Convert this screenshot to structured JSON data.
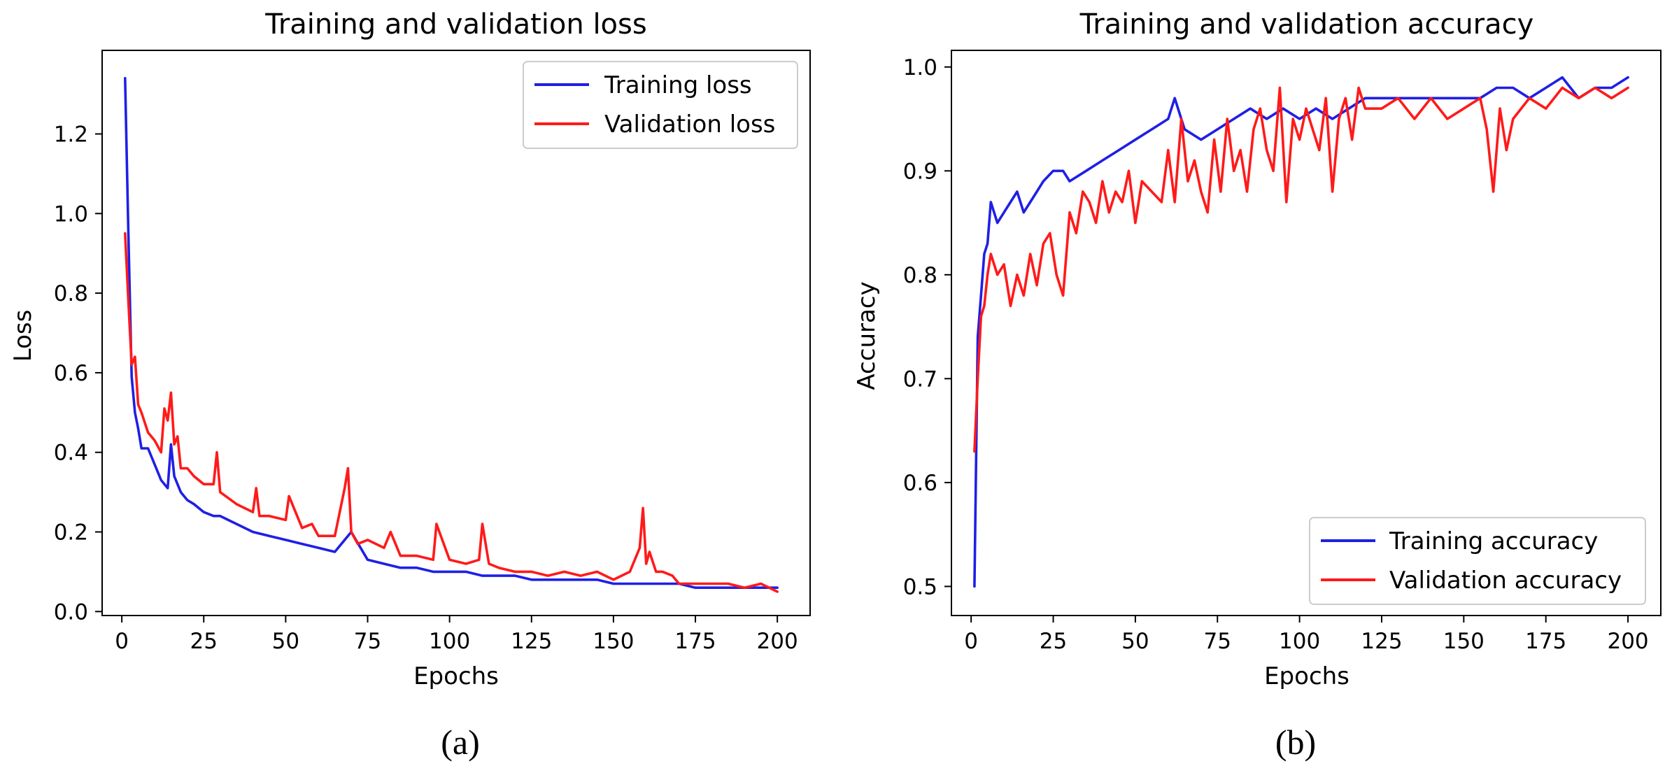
{
  "chart_data": [
    {
      "type": "line",
      "caption": "(a)",
      "title": "Training and validation loss",
      "xlabel": "Epochs",
      "ylabel": "Loss",
      "xlim": [
        -6,
        210
      ],
      "ylim": [
        -0.01,
        1.41
      ],
      "xticks": [
        0,
        25,
        50,
        75,
        100,
        125,
        150,
        175,
        200
      ],
      "xtick_labels": [
        "0",
        "25",
        "50",
        "75",
        "100",
        "125",
        "150",
        "175",
        "200"
      ],
      "yticks": [
        0.0,
        0.2,
        0.4,
        0.6,
        0.8,
        1.0,
        1.2
      ],
      "ytick_labels": [
        "0.0",
        "0.2",
        "0.4",
        "0.6",
        "0.8",
        "1.0",
        "1.2"
      ],
      "legend_position": "top-right",
      "grid": false,
      "series": [
        {
          "name": "Training loss",
          "color": "#1f1fe6",
          "x": [
            1,
            2,
            3,
            4,
            5,
            6,
            8,
            10,
            12,
            14,
            15,
            16,
            18,
            20,
            22,
            25,
            28,
            30,
            35,
            40,
            45,
            50,
            55,
            60,
            65,
            70,
            75,
            80,
            85,
            90,
            95,
            100,
            105,
            110,
            115,
            120,
            125,
            130,
            135,
            140,
            145,
            150,
            155,
            160,
            165,
            170,
            175,
            180,
            185,
            190,
            195,
            200
          ],
          "y": [
            1.34,
            0.95,
            0.59,
            0.5,
            0.46,
            0.41,
            0.41,
            0.37,
            0.33,
            0.31,
            0.42,
            0.34,
            0.3,
            0.28,
            0.27,
            0.25,
            0.24,
            0.24,
            0.22,
            0.2,
            0.19,
            0.18,
            0.17,
            0.16,
            0.15,
            0.2,
            0.13,
            0.12,
            0.11,
            0.11,
            0.1,
            0.1,
            0.1,
            0.09,
            0.09,
            0.09,
            0.08,
            0.08,
            0.08,
            0.08,
            0.08,
            0.07,
            0.07,
            0.07,
            0.07,
            0.07,
            0.06,
            0.06,
            0.06,
            0.06,
            0.06,
            0.06
          ]
        },
        {
          "name": "Validation loss",
          "color": "#ff1a1a",
          "x": [
            1,
            2,
            3,
            4,
            5,
            6,
            8,
            10,
            12,
            13,
            14,
            15,
            16,
            17,
            18,
            20,
            22,
            25,
            28,
            29,
            30,
            35,
            40,
            41,
            42,
            45,
            50,
            51,
            55,
            58,
            60,
            65,
            68,
            69,
            70,
            72,
            75,
            80,
            82,
            85,
            90,
            95,
            96,
            100,
            105,
            109,
            110,
            112,
            115,
            120,
            125,
            130,
            135,
            140,
            145,
            150,
            155,
            158,
            159,
            160,
            161,
            163,
            165,
            168,
            170,
            175,
            180,
            185,
            190,
            195,
            200
          ],
          "y": [
            0.95,
            0.78,
            0.62,
            0.64,
            0.52,
            0.5,
            0.45,
            0.43,
            0.4,
            0.51,
            0.48,
            0.55,
            0.42,
            0.44,
            0.36,
            0.36,
            0.34,
            0.32,
            0.32,
            0.4,
            0.3,
            0.27,
            0.25,
            0.31,
            0.24,
            0.24,
            0.23,
            0.29,
            0.21,
            0.22,
            0.19,
            0.19,
            0.31,
            0.36,
            0.2,
            0.17,
            0.18,
            0.16,
            0.2,
            0.14,
            0.14,
            0.13,
            0.22,
            0.13,
            0.12,
            0.13,
            0.22,
            0.12,
            0.11,
            0.1,
            0.1,
            0.09,
            0.1,
            0.09,
            0.1,
            0.08,
            0.1,
            0.16,
            0.26,
            0.12,
            0.15,
            0.1,
            0.1,
            0.09,
            0.07,
            0.07,
            0.07,
            0.07,
            0.06,
            0.07,
            0.05
          ]
        }
      ]
    },
    {
      "type": "line",
      "caption": "(b)",
      "title": "Training and validation accuracy",
      "xlabel": "Epochs",
      "ylabel": "Accuracy",
      "xlim": [
        -6,
        210
      ],
      "ylim": [
        0.472,
        1.016
      ],
      "xticks": [
        0,
        25,
        50,
        75,
        100,
        125,
        150,
        175,
        200
      ],
      "xtick_labels": [
        "0",
        "25",
        "50",
        "75",
        "100",
        "125",
        "150",
        "175",
        "200"
      ],
      "yticks": [
        0.5,
        0.6,
        0.7,
        0.8,
        0.9,
        1.0
      ],
      "ytick_labels": [
        "0.5",
        "0.6",
        "0.7",
        "0.8",
        "0.9",
        "1.0"
      ],
      "legend_position": "bottom-right",
      "grid": false,
      "series": [
        {
          "name": "Training accuracy",
          "color": "#1f1fe6",
          "x": [
            1,
            2,
            3,
            4,
            5,
            6,
            7,
            8,
            10,
            12,
            14,
            16,
            18,
            20,
            22,
            25,
            28,
            30,
            35,
            40,
            45,
            50,
            55,
            60,
            62,
            65,
            70,
            75,
            80,
            85,
            90,
            95,
            100,
            105,
            110,
            115,
            120,
            125,
            130,
            135,
            140,
            145,
            150,
            155,
            160,
            165,
            170,
            175,
            180,
            185,
            190,
            195,
            200
          ],
          "y": [
            0.5,
            0.74,
            0.78,
            0.82,
            0.83,
            0.87,
            0.86,
            0.85,
            0.86,
            0.87,
            0.88,
            0.86,
            0.87,
            0.88,
            0.89,
            0.9,
            0.9,
            0.89,
            0.9,
            0.91,
            0.92,
            0.93,
            0.94,
            0.95,
            0.97,
            0.94,
            0.93,
            0.94,
            0.95,
            0.96,
            0.95,
            0.96,
            0.95,
            0.96,
            0.95,
            0.96,
            0.97,
            0.97,
            0.97,
            0.97,
            0.97,
            0.97,
            0.97,
            0.97,
            0.98,
            0.98,
            0.97,
            0.98,
            0.99,
            0.97,
            0.98,
            0.98,
            0.99
          ]
        },
        {
          "name": "Validation accuracy",
          "color": "#ff1a1a",
          "x": [
            1,
            2,
            3,
            4,
            5,
            6,
            8,
            10,
            12,
            14,
            16,
            18,
            20,
            22,
            24,
            26,
            28,
            30,
            32,
            34,
            36,
            38,
            40,
            42,
            44,
            46,
            48,
            50,
            52,
            55,
            58,
            60,
            62,
            64,
            66,
            68,
            70,
            72,
            74,
            76,
            78,
            80,
            82,
            84,
            86,
            88,
            90,
            92,
            94,
            96,
            98,
            100,
            102,
            104,
            106,
            108,
            110,
            112,
            114,
            116,
            118,
            120,
            125,
            130,
            135,
            140,
            145,
            150,
            155,
            157,
            159,
            161,
            163,
            165,
            170,
            175,
            180,
            185,
            190,
            195,
            200
          ],
          "y": [
            0.63,
            0.7,
            0.76,
            0.77,
            0.8,
            0.82,
            0.8,
            0.81,
            0.77,
            0.8,
            0.78,
            0.82,
            0.79,
            0.83,
            0.84,
            0.8,
            0.78,
            0.86,
            0.84,
            0.88,
            0.87,
            0.85,
            0.89,
            0.86,
            0.88,
            0.87,
            0.9,
            0.85,
            0.89,
            0.88,
            0.87,
            0.92,
            0.87,
            0.95,
            0.89,
            0.91,
            0.88,
            0.86,
            0.93,
            0.88,
            0.95,
            0.9,
            0.92,
            0.88,
            0.94,
            0.96,
            0.92,
            0.9,
            0.98,
            0.87,
            0.95,
            0.93,
            0.96,
            0.94,
            0.92,
            0.97,
            0.88,
            0.95,
            0.97,
            0.93,
            0.98,
            0.96,
            0.96,
            0.97,
            0.95,
            0.97,
            0.95,
            0.96,
            0.97,
            0.94,
            0.88,
            0.96,
            0.92,
            0.95,
            0.97,
            0.96,
            0.98,
            0.97,
            0.98,
            0.97,
            0.98
          ]
        }
      ]
    }
  ]
}
